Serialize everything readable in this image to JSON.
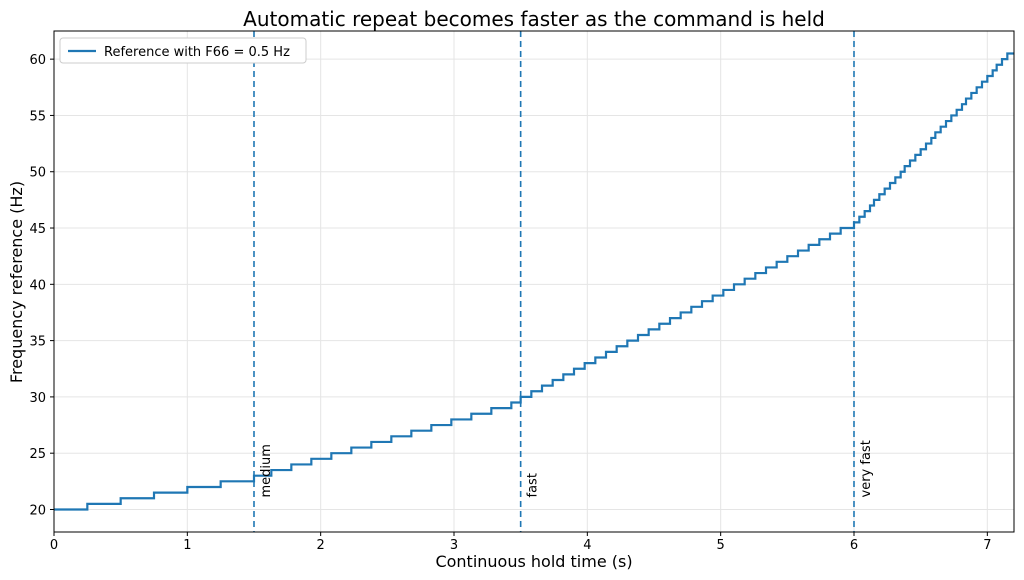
{
  "chart_data": {
    "type": "step",
    "title": "Automatic repeat becomes faster as the command is held",
    "x_label": "Continuous hold time (s)",
    "y_label": "Frequency reference (Hz)",
    "xlim": [
      0,
      7.2
    ],
    "ylim": [
      18,
      62.5
    ],
    "xticks": [
      0,
      1,
      2,
      3,
      4,
      5,
      6,
      7
    ],
    "yticks": [
      20,
      25,
      30,
      35,
      40,
      45,
      50,
      55,
      60
    ],
    "grid": true,
    "legend": "upper left",
    "series": [
      {
        "name": "Reference with F66 = 0.5 Hz",
        "color": "#1f77b4",
        "x": [
          0,
          0.25,
          0.5,
          0.75,
          1.0,
          1.25,
          1.5,
          1.63,
          1.78,
          1.93,
          2.08,
          2.23,
          2.38,
          2.53,
          2.68,
          2.83,
          2.98,
          3.13,
          3.28,
          3.43,
          3.5,
          3.58,
          3.66,
          3.74,
          3.82,
          3.9,
          3.98,
          4.06,
          4.14,
          4.22,
          4.3,
          4.38,
          4.46,
          4.54,
          4.62,
          4.7,
          4.78,
          4.86,
          4.94,
          5.02,
          5.1,
          5.18,
          5.26,
          5.34,
          5.42,
          5.5,
          5.58,
          5.66,
          5.74,
          5.82,
          5.9,
          6.0,
          6.04,
          6.08,
          6.12,
          6.15,
          6.19,
          6.23,
          6.27,
          6.31,
          6.35,
          6.38,
          6.42,
          6.46,
          6.5,
          6.54,
          6.58,
          6.61,
          6.65,
          6.69,
          6.73,
          6.77,
          6.81,
          6.84,
          6.88,
          6.92,
          6.96,
          7.0,
          7.04,
          7.07,
          7.11,
          7.15
        ],
        "values": [
          20,
          20.5,
          21,
          21.5,
          22,
          22.5,
          23,
          23.5,
          24,
          24.5,
          25,
          25.5,
          26,
          26.5,
          27,
          27.5,
          28,
          28.5,
          29,
          29.5,
          30,
          30.5,
          31,
          31.5,
          32,
          32.5,
          33,
          33.5,
          34,
          34.5,
          35,
          35.5,
          36,
          36.5,
          37,
          37.5,
          38,
          38.5,
          39,
          39.5,
          40,
          40.5,
          41,
          41.5,
          42,
          42.5,
          43,
          43.5,
          44,
          44.5,
          45,
          45.5,
          46,
          46.5,
          47,
          47.5,
          48,
          48.5,
          49,
          49.5,
          50,
          50.5,
          51,
          51.5,
          52,
          52.5,
          53,
          53.5,
          54,
          54.5,
          55,
          55.5,
          56,
          56.5,
          57,
          57.5,
          58,
          58.5,
          59,
          59.5,
          60,
          60.5
        ]
      }
    ],
    "vlines": [
      {
        "x": 1.5,
        "label": "medium"
      },
      {
        "x": 3.5,
        "label": "fast"
      },
      {
        "x": 6,
        "label": "very fast"
      }
    ]
  }
}
